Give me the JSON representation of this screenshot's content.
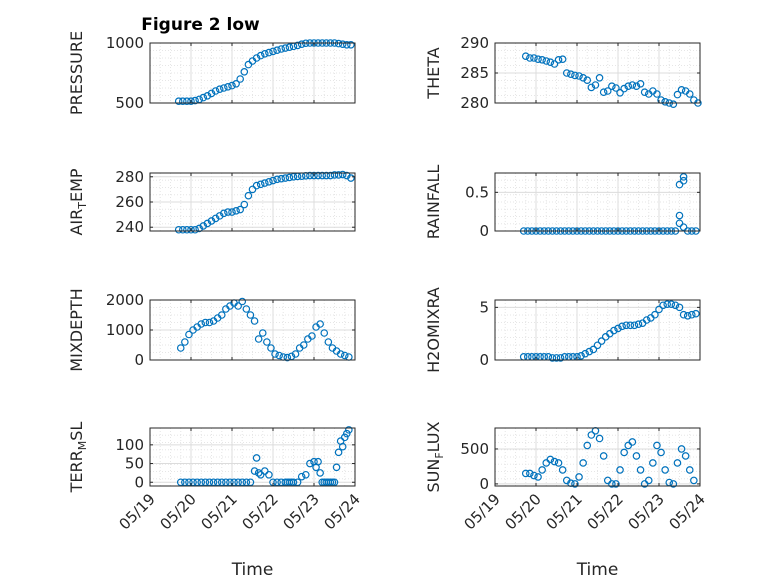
{
  "figure": {
    "title": "Figure 2 low",
    "marker_color": "#0072BD",
    "time_ticks": [
      "05/19",
      "05/20",
      "05/21",
      "05/22",
      "05/23",
      "05/24"
    ]
  },
  "chart_data": [
    {
      "type": "scatter",
      "title": "Figure 2 low",
      "ylabel": "PRESSURE",
      "xlabel": "",
      "ylim": [
        500,
        1000
      ],
      "yticks": [
        500,
        1000
      ],
      "yticklabels": [
        "500",
        "1000"
      ],
      "grid": true,
      "x": [
        0.7,
        0.8,
        0.9,
        1.0,
        1.1,
        1.2,
        1.3,
        1.4,
        1.5,
        1.6,
        1.7,
        1.8,
        1.9,
        2.0,
        2.1,
        2.2,
        2.3,
        2.4,
        2.5,
        2.6,
        2.7,
        2.8,
        2.9,
        3.0,
        3.1,
        3.2,
        3.3,
        3.4,
        3.5,
        3.6,
        3.7,
        3.8,
        3.9,
        4.0,
        4.1,
        4.2,
        4.3,
        4.4,
        4.5,
        4.6,
        4.7,
        4.8,
        4.9
      ],
      "y": [
        515,
        515,
        515,
        515,
        520,
        530,
        545,
        560,
        580,
        600,
        615,
        625,
        635,
        645,
        660,
        700,
        760,
        820,
        850,
        875,
        895,
        910,
        920,
        930,
        940,
        950,
        958,
        965,
        972,
        980,
        990,
        998,
        1000,
        1000,
        1000,
        1000,
        1000,
        1000,
        1000,
        995,
        990,
        985,
        985
      ]
    },
    {
      "type": "scatter",
      "ylabel": "THETA",
      "xlabel": "",
      "ylim": [
        280,
        290
      ],
      "yticks": [
        280,
        285,
        290
      ],
      "yticklabels": [
        "280",
        "285",
        "290"
      ],
      "grid": true,
      "x": [
        0.75,
        0.85,
        0.95,
        1.05,
        1.15,
        1.25,
        1.35,
        1.45,
        1.55,
        1.65,
        1.75,
        1.85,
        1.95,
        2.05,
        2.15,
        2.25,
        2.35,
        2.45,
        2.55,
        2.65,
        2.75,
        2.85,
        2.95,
        3.05,
        3.15,
        3.25,
        3.35,
        3.45,
        3.55,
        3.65,
        3.75,
        3.85,
        3.95,
        4.05,
        4.15,
        4.25,
        4.35,
        4.45,
        4.55,
        4.65,
        4.75,
        4.85,
        4.95
      ],
      "y": [
        287.8,
        287.5,
        287.5,
        287.3,
        287.2,
        287.0,
        286.8,
        286.5,
        287.2,
        287.3,
        285.0,
        284.8,
        284.6,
        284.5,
        284.2,
        283.8,
        282.6,
        283.0,
        284.2,
        281.8,
        282.0,
        282.8,
        282.5,
        281.7,
        282.4,
        282.8,
        283.0,
        282.8,
        283.2,
        281.8,
        281.5,
        282.0,
        281.5,
        280.5,
        280.2,
        280.0,
        279.8,
        281.4,
        282.2,
        282.0,
        281.5,
        280.5,
        280.0
      ]
    },
    {
      "type": "scatter",
      "ylabel": "AIR_TEMP",
      "xlabel": "",
      "ylim": [
        237,
        283
      ],
      "yticks": [
        240,
        260,
        280
      ],
      "yticklabels": [
        "240",
        "260",
        "280"
      ],
      "grid": true,
      "x": [
        0.7,
        0.8,
        0.9,
        1.0,
        1.1,
        1.2,
        1.3,
        1.4,
        1.5,
        1.6,
        1.7,
        1.8,
        1.9,
        2.0,
        2.1,
        2.2,
        2.3,
        2.4,
        2.5,
        2.6,
        2.7,
        2.8,
        2.9,
        3.0,
        3.1,
        3.2,
        3.3,
        3.4,
        3.5,
        3.6,
        3.7,
        3.8,
        3.9,
        4.0,
        4.1,
        4.2,
        4.3,
        4.4,
        4.5,
        4.6,
        4.7,
        4.8,
        4.9
      ],
      "y": [
        238,
        238,
        238,
        238,
        238,
        239,
        241,
        243,
        245,
        247,
        249,
        251,
        252,
        252,
        253,
        254,
        258,
        265,
        270,
        273,
        274,
        275,
        276,
        277,
        278,
        278.5,
        279,
        279.5,
        280,
        280.3,
        280.5,
        280.8,
        281,
        281,
        281,
        281,
        281,
        281,
        281.5,
        281.5,
        281.8,
        281,
        279
      ]
    },
    {
      "type": "scatter",
      "ylabel": "RAINFALL",
      "xlabel": "",
      "ylim": [
        0,
        0.75
      ],
      "yticks": [
        0,
        0.5
      ],
      "yticklabels": [
        "0",
        "0.5"
      ],
      "grid": true,
      "x": [
        0.7,
        0.8,
        0.9,
        1.0,
        1.1,
        1.2,
        1.3,
        1.4,
        1.5,
        1.6,
        1.7,
        1.8,
        1.9,
        2.0,
        2.1,
        2.2,
        2.3,
        2.4,
        2.5,
        2.6,
        2.7,
        2.8,
        2.9,
        3.0,
        3.1,
        3.2,
        3.3,
        3.4,
        3.5,
        3.6,
        3.7,
        3.8,
        3.9,
        4.0,
        4.1,
        4.2,
        4.3,
        4.4,
        4.5,
        4.5,
        4.5,
        4.6,
        4.6,
        4.6,
        4.7,
        4.8,
        4.9
      ],
      "y": [
        0,
        0,
        0,
        0,
        0,
        0,
        0,
        0,
        0,
        0,
        0,
        0,
        0,
        0,
        0,
        0,
        0,
        0,
        0,
        0,
        0,
        0,
        0,
        0,
        0,
        0,
        0,
        0,
        0,
        0,
        0,
        0,
        0,
        0,
        0,
        0,
        0,
        0,
        0.1,
        0.2,
        0.6,
        0.7,
        0.65,
        0.05,
        0,
        0,
        0
      ]
    },
    {
      "type": "scatter",
      "ylabel": "MIXDEPTH",
      "xlabel": "",
      "ylim": [
        0,
        2000
      ],
      "yticks": [
        0,
        1000,
        2000
      ],
      "yticklabels": [
        "0",
        "1000",
        "2000"
      ],
      "grid": true,
      "x": [
        0.75,
        0.85,
        0.95,
        1.05,
        1.15,
        1.25,
        1.35,
        1.45,
        1.55,
        1.65,
        1.75,
        1.85,
        1.95,
        2.05,
        2.15,
        2.25,
        2.35,
        2.45,
        2.55,
        2.65,
        2.75,
        2.85,
        2.95,
        3.05,
        3.15,
        3.25,
        3.35,
        3.45,
        3.55,
        3.65,
        3.75,
        3.85,
        3.95,
        4.05,
        4.15,
        4.25,
        4.35,
        4.45,
        4.55,
        4.65,
        4.75,
        4.85
      ],
      "y": [
        400,
        600,
        850,
        1000,
        1100,
        1200,
        1250,
        1250,
        1300,
        1400,
        1500,
        1700,
        1800,
        1900,
        1800,
        1950,
        1700,
        1500,
        1300,
        700,
        900,
        600,
        400,
        200,
        150,
        100,
        80,
        120,
        200,
        400,
        500,
        700,
        800,
        1100,
        1200,
        900,
        600,
        400,
        300,
        200,
        150,
        100
      ]
    },
    {
      "type": "scatter",
      "ylabel": "H2OMIXRA",
      "xlabel": "",
      "ylim": [
        0,
        5.7
      ],
      "yticks": [
        0,
        5
      ],
      "yticklabels": [
        "0",
        "5"
      ],
      "grid": true,
      "x": [
        0.7,
        0.8,
        0.9,
        1.0,
        1.1,
        1.2,
        1.3,
        1.4,
        1.5,
        1.6,
        1.7,
        1.8,
        1.9,
        2.0,
        2.1,
        2.2,
        2.3,
        2.4,
        2.5,
        2.6,
        2.7,
        2.8,
        2.9,
        3.0,
        3.1,
        3.2,
        3.3,
        3.4,
        3.5,
        3.6,
        3.7,
        3.8,
        3.9,
        4.0,
        4.1,
        4.2,
        4.3,
        4.4,
        4.5,
        4.6,
        4.7,
        4.8,
        4.9
      ],
      "y": [
        0.3,
        0.3,
        0.3,
        0.3,
        0.3,
        0.3,
        0.3,
        0.2,
        0.2,
        0.2,
        0.3,
        0.3,
        0.3,
        0.3,
        0.4,
        0.6,
        0.8,
        1.0,
        1.4,
        1.8,
        2.2,
        2.5,
        2.8,
        3.0,
        3.2,
        3.3,
        3.3,
        3.3,
        3.4,
        3.5,
        3.8,
        4.0,
        4.3,
        4.8,
        5.2,
        5.3,
        5.3,
        5.2,
        5.0,
        4.3,
        4.2,
        4.3,
        4.4
      ]
    },
    {
      "type": "scatter",
      "ylabel": "TERR_MSL",
      "xlabel": "Time",
      "ylim": [
        -10,
        145
      ],
      "yticks": [
        0,
        50,
        100
      ],
      "yticklabels": [
        "0",
        "50",
        "100"
      ],
      "grid": true,
      "x": [
        0.75,
        0.85,
        0.95,
        1.05,
        1.15,
        1.25,
        1.35,
        1.45,
        1.55,
        1.65,
        1.75,
        1.85,
        1.95,
        2.05,
        2.15,
        2.25,
        2.35,
        2.45,
        2.55,
        2.6,
        2.65,
        2.7,
        2.8,
        2.9,
        3.0,
        3.1,
        3.2,
        3.3,
        3.35,
        3.4,
        3.45,
        3.5,
        3.6,
        3.7,
        3.8,
        3.9,
        4.0,
        4.05,
        4.1,
        4.15,
        4.2,
        4.25,
        4.3,
        4.35,
        4.4,
        4.45,
        4.5,
        4.55,
        4.6,
        4.65,
        4.7,
        4.75,
        4.8,
        4.85
      ],
      "y": [
        0,
        0,
        0,
        0,
        0,
        0,
        0,
        0,
        0,
        0,
        0,
        0,
        0,
        0,
        0,
        0,
        0,
        0,
        30,
        65,
        25,
        20,
        30,
        20,
        0,
        0,
        0,
        0,
        0,
        0,
        0,
        0,
        0,
        15,
        20,
        50,
        55,
        40,
        55,
        25,
        0,
        0,
        0,
        0,
        0,
        0,
        0,
        40,
        80,
        110,
        95,
        120,
        130,
        140
      ]
    },
    {
      "type": "scatter",
      "ylabel": "SUN_FLUX",
      "xlabel": "Time",
      "ylim": [
        -30,
        800
      ],
      "yticks": [
        0,
        500
      ],
      "yticklabels": [
        "0",
        "500"
      ],
      "grid": true,
      "x": [
        0.75,
        0.85,
        0.95,
        1.05,
        1.15,
        1.25,
        1.35,
        1.45,
        1.55,
        1.65,
        1.75,
        1.85,
        1.95,
        2.05,
        2.15,
        2.25,
        2.35,
        2.45,
        2.55,
        2.65,
        2.75,
        2.85,
        2.95,
        3.05,
        3.15,
        3.25,
        3.35,
        3.45,
        3.55,
        3.65,
        3.75,
        3.85,
        3.95,
        4.05,
        4.15,
        4.25,
        4.35,
        4.45,
        4.55,
        4.65,
        4.75,
        4.85
      ],
      "y": [
        150,
        150,
        120,
        100,
        200,
        300,
        350,
        320,
        300,
        200,
        50,
        10,
        0,
        100,
        300,
        550,
        700,
        760,
        650,
        400,
        50,
        0,
        0,
        200,
        450,
        550,
        600,
        400,
        200,
        0,
        50,
        300,
        550,
        450,
        200,
        20,
        0,
        300,
        500,
        400,
        200,
        50
      ]
    }
  ]
}
